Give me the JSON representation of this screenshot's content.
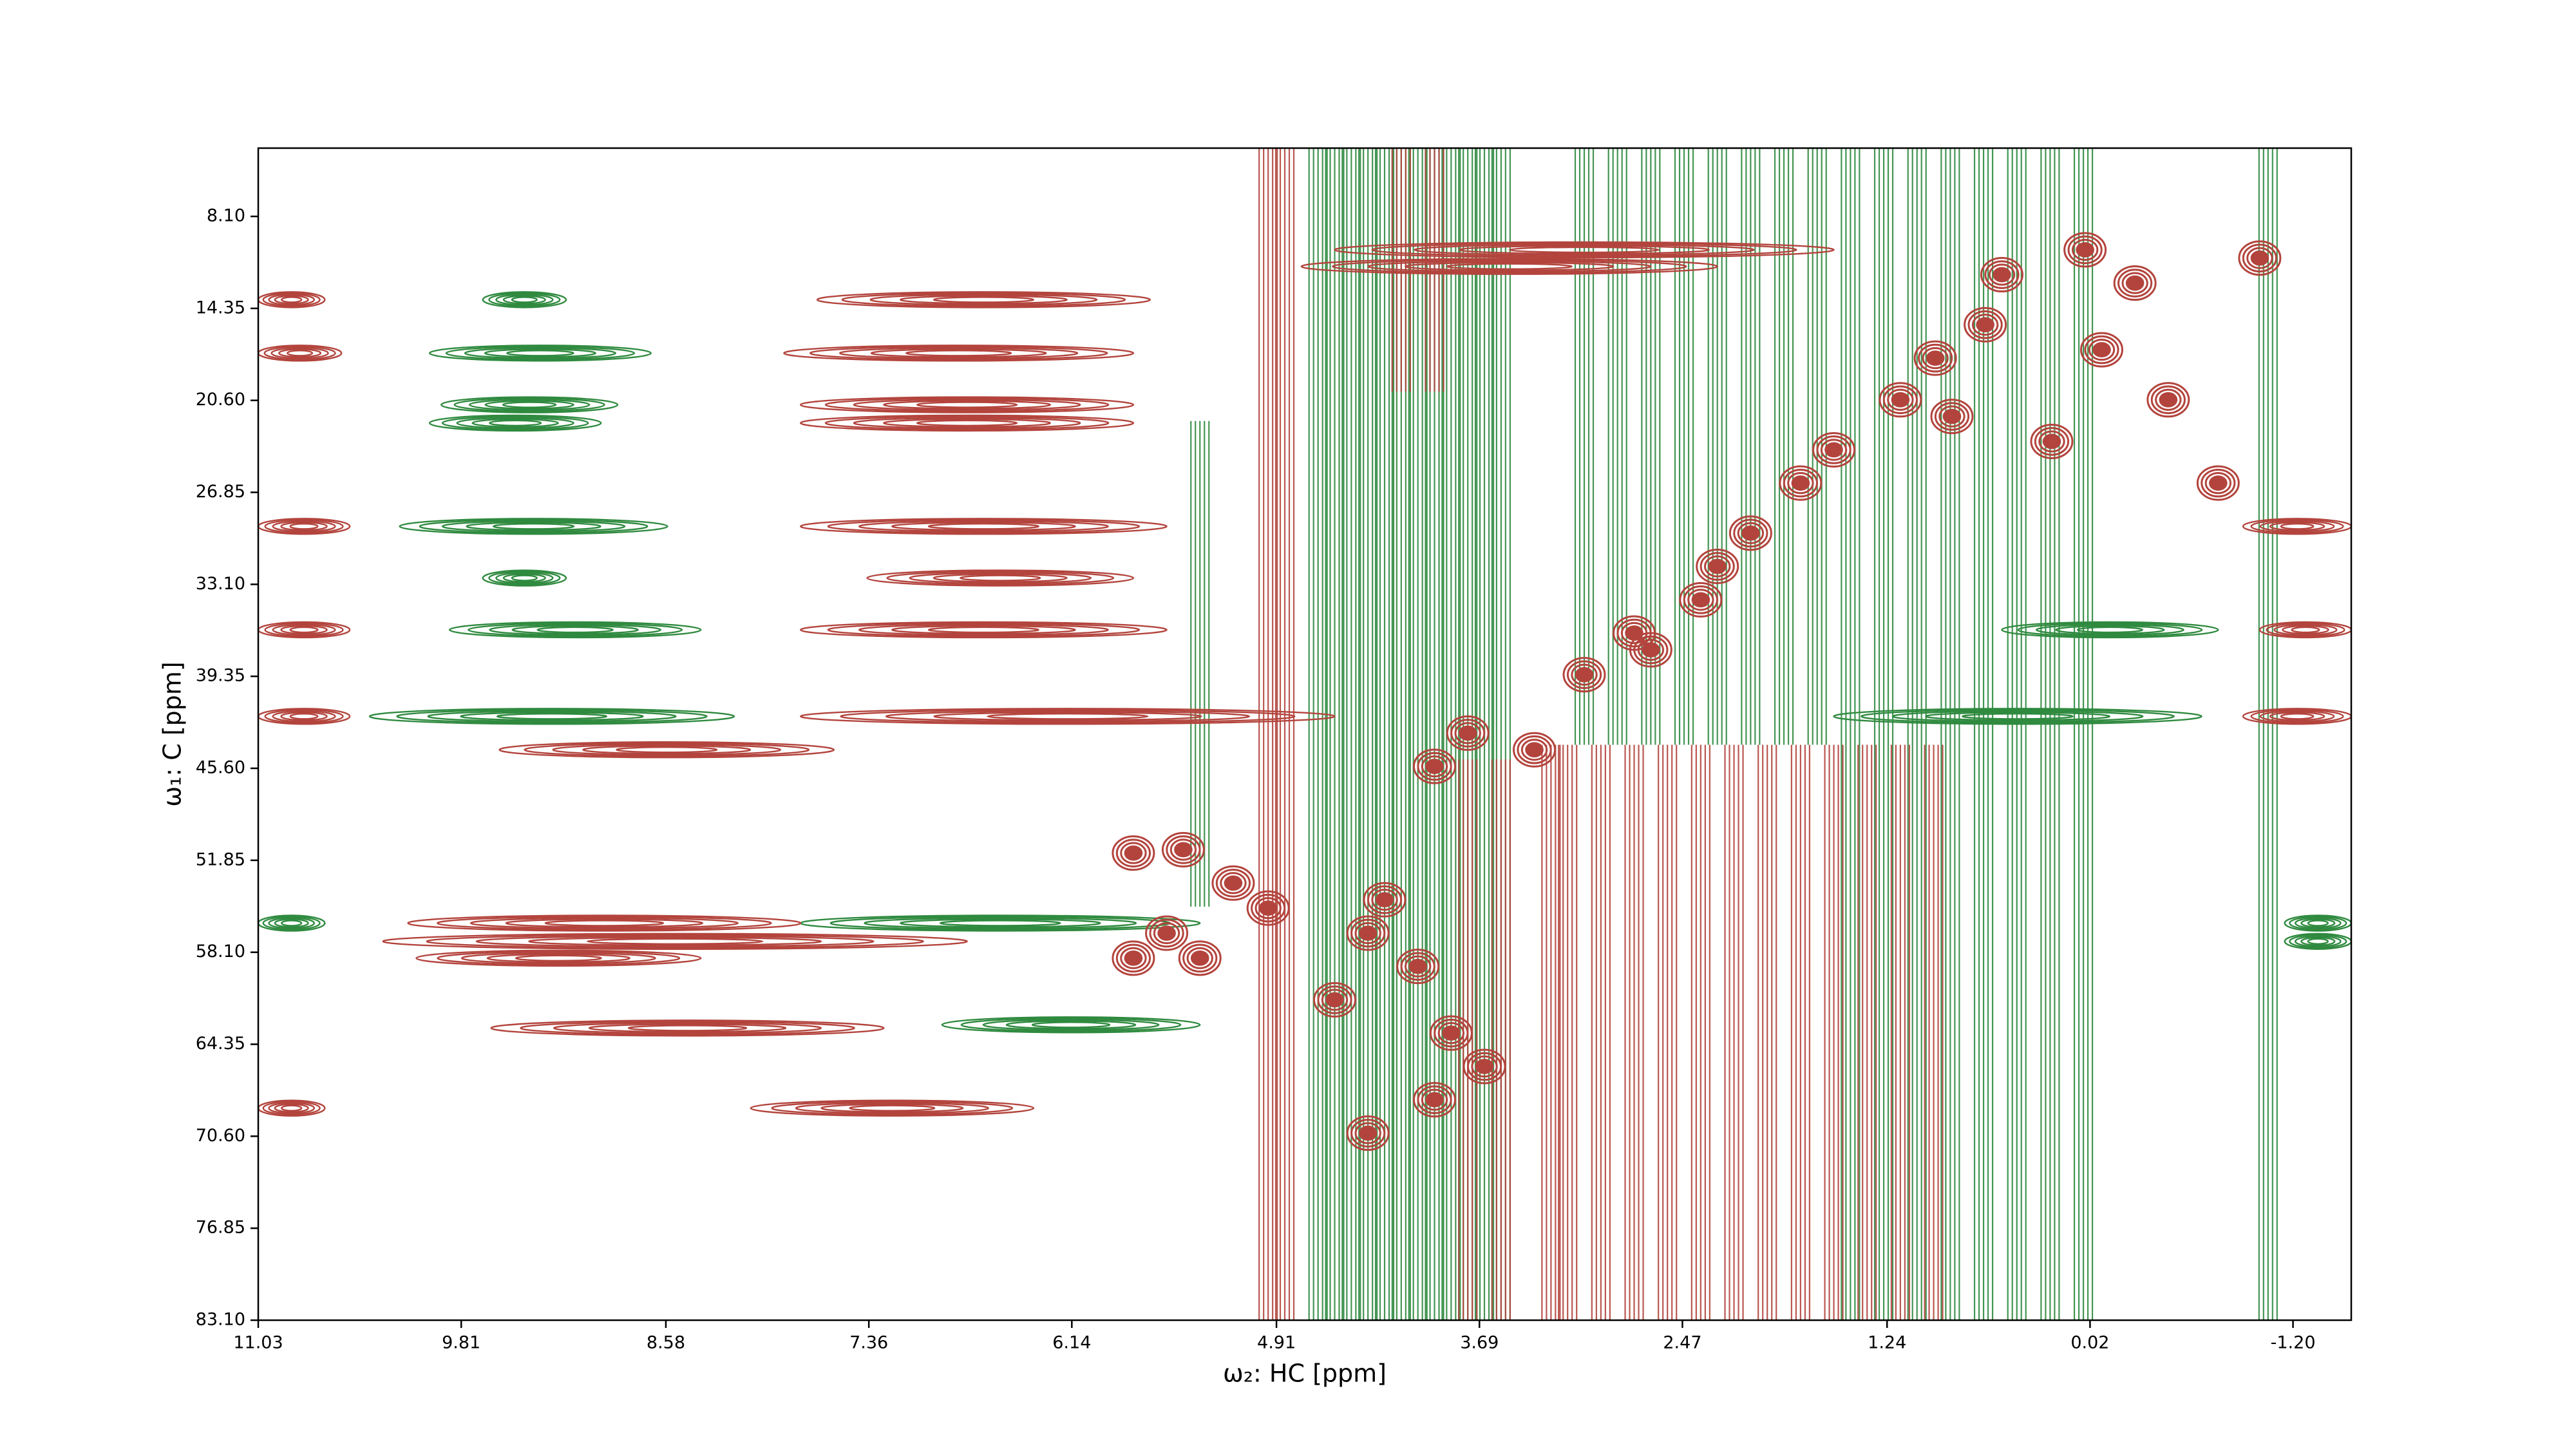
{
  "chart_data": {
    "type": "contour",
    "xlabel": "ω₂: HC [ppm]",
    "ylabel": "ω₁: C [ppm]",
    "xlim": [
      11.03,
      -1.55
    ],
    "ylim": [
      83.1,
      3.46
    ],
    "xticks": [
      11.03,
      9.81,
      8.58,
      7.36,
      6.14,
      4.91,
      3.69,
      2.47,
      1.24,
      0.02,
      {
        "value": -1.2,
        "label": "-1.20"
      }
    ],
    "yticks": [
      {
        "value": 8.1,
        "label": "8.10"
      },
      14.35,
      {
        "value": 20.6,
        "label": "20.60"
      },
      26.85,
      {
        "value": 33.1,
        "label": "33.10"
      },
      39.35,
      {
        "value": 45.6,
        "label": "45.60"
      },
      51.85,
      {
        "value": 58.1,
        "label": "58.10"
      },
      64.35,
      {
        "value": 70.6,
        "label": "70.60"
      },
      76.85,
      {
        "value": 83.1,
        "label": "83.10"
      }
    ],
    "series": [
      {
        "color": "#2f8a3f",
        "stripes": {
          "x": [
            4.66,
            4.56,
            4.46,
            4.36,
            4.26,
            4.16,
            4.06,
            3.96,
            3.86,
            3.76,
            3.66,
            3.56,
            3.06,
            2.86,
            2.66,
            2.46,
            2.26,
            2.06,
            1.86,
            1.66,
            1.46,
            1.26,
            1.06,
            0.86,
            0.66,
            0.46,
            0.26,
            0.06,
            -1.05,
            5.37
          ],
          "y0": [
            3.46,
            3.46,
            3.46,
            3.46,
            3.46,
            3.46,
            3.46,
            3.46,
            3.46,
            3.46,
            3.46,
            3.46,
            3.46,
            3.46,
            3.46,
            3.46,
            3.46,
            3.46,
            3.46,
            3.46,
            3.46,
            3.46,
            3.46,
            3.46,
            3.46,
            3.46,
            3.46,
            3.46,
            3.46,
            22
          ],
          "y1": [
            83.1,
            83.1,
            83.1,
            83.1,
            83.1,
            83.1,
            83.1,
            83.1,
            83.1,
            83.1,
            83.1,
            83.1,
            44,
            44,
            44,
            44,
            44,
            44,
            44,
            44,
            83.1,
            83.1,
            83.1,
            83.1,
            83.1,
            83.1,
            83.1,
            83.1,
            83.1,
            55
          ]
        },
        "ridges": {
          "y": [
            13.76,
            17.39,
            20.9,
            22.14,
            29.16,
            32.67,
            36.19,
            42.07,
            56.12,
            63.03,
            42.07,
            36.19,
            56.12,
            57.36,
            56.12
          ],
          "x0": [
            9.68,
            10.0,
            9.93,
            10.0,
            10.18,
            9.68,
            9.88,
            10.36,
            7.77,
            6.92,
            1.56,
            0.55,
            -1.15,
            -1.15,
            11.03
          ],
          "x1": [
            9.18,
            8.67,
            8.87,
            8.97,
            8.57,
            9.18,
            8.37,
            8.17,
            5.37,
            5.37,
            -0.65,
            -0.75,
            -1.55,
            -1.55,
            10.63
          ]
        },
        "peaks": {
          "x": [],
          "y": []
        }
      },
      {
        "color": "#b3443d",
        "stripes": {
          "x": [
            4.96,
            4.86,
            4.16,
            3.96,
            3.76,
            3.56,
            3.26,
            3.16,
            2.96,
            2.76,
            2.56,
            2.36,
            2.16,
            1.96,
            1.76,
            1.56,
            1.36,
            1.16,
            0.96
          ],
          "y0": [
            3.46,
            3.46,
            3.46,
            3.46,
            45,
            45,
            44,
            44,
            44,
            44,
            44,
            44,
            44,
            44,
            44,
            44,
            44,
            44,
            44
          ],
          "y1": [
            83.1,
            83.1,
            20,
            20,
            83.1,
            83.1,
            83.1,
            83.1,
            83.1,
            83.1,
            83.1,
            83.1,
            83.1,
            83.1,
            83.1,
            83.1,
            83.1,
            83.1,
            83.1
          ]
        },
        "ridges": {
          "y": [
            13.76,
            13.76,
            17.39,
            17.39,
            20.9,
            22.14,
            29.16,
            29.16,
            29.16,
            32.67,
            36.19,
            36.19,
            36.19,
            42.07,
            42.07,
            42.07,
            44.34,
            56.12,
            57.36,
            58.5,
            63.25,
            68.69,
            68.69,
            10.37,
            11.5
          ],
          "x0": [
            7.67,
            11.03,
            7.87,
            11.03,
            7.77,
            7.77,
            7.77,
            11.03,
            -0.9,
            7.37,
            7.77,
            11.03,
            -1.0,
            7.77,
            11.03,
            -0.9,
            9.58,
            10.13,
            10.28,
            10.08,
            9.63,
            8.07,
            11.03,
            4.56,
            4.76
          ],
          "x1": [
            5.67,
            10.63,
            5.77,
            10.53,
            5.77,
            5.77,
            5.57,
            10.48,
            -1.55,
            5.77,
            5.57,
            10.48,
            -1.55,
            4.56,
            10.48,
            -1.55,
            7.57,
            7.77,
            6.77,
            8.37,
            7.27,
            6.37,
            10.63,
            1.56,
            2.26
          ]
        },
        "peaks": {
          "x": [
            0.05,
            0.55,
            0.65,
            0.95,
            1.16,
            0.85,
            1.56,
            1.76,
            2.06,
            2.26,
            2.36,
            2.66,
            3.06,
            2.76,
            0.25,
            -0.05,
            -0.45,
            -0.75,
            -1.0,
            3.76,
            3.96,
            3.36,
            4.26,
            4.36,
            4.06,
            4.56,
            3.86,
            3.66,
            3.96,
            4.36,
            5.77,
            5.47,
            5.17,
            5.57,
            5.37,
            5.77,
            4.96,
            -0.25
          ],
          "y": [
            10.37,
            12.06,
            15.46,
            17.73,
            20.56,
            21.69,
            23.96,
            26.22,
            29.62,
            31.88,
            34.15,
            37.55,
            39.24,
            36.41,
            23.39,
            17.16,
            20.56,
            26.22,
            10.93,
            43.21,
            45.47,
            44.34,
            54.53,
            56.8,
            59.06,
            61.33,
            63.59,
            65.86,
            68.12,
            70.39,
            51.36,
            51.13,
            53.4,
            56.8,
            58.5,
            58.5,
            55.1,
            12.63
          ]
        }
      }
    ]
  }
}
